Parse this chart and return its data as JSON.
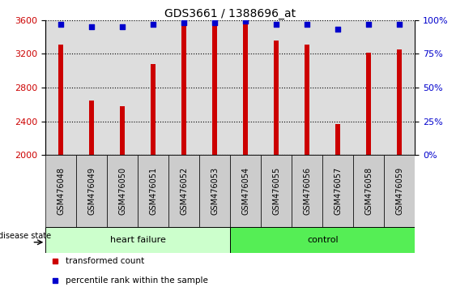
{
  "title": "GDS3661 / 1388696_at",
  "samples": [
    "GSM476048",
    "GSM476049",
    "GSM476050",
    "GSM476051",
    "GSM476052",
    "GSM476053",
    "GSM476054",
    "GSM476055",
    "GSM476056",
    "GSM476057",
    "GSM476058",
    "GSM476059"
  ],
  "transformed_count": [
    3305,
    2650,
    2580,
    3075,
    3530,
    3535,
    3590,
    3360,
    3305,
    2370,
    3210,
    3255
  ],
  "percentile_rank": [
    97,
    95,
    95,
    97,
    98,
    98,
    99,
    97,
    97,
    93,
    97,
    97
  ],
  "ymin": 2000,
  "ymax": 3600,
  "yticks": [
    2000,
    2400,
    2800,
    3200,
    3600
  ],
  "right_yticks": [
    0,
    25,
    50,
    75,
    100
  ],
  "bar_color": "#cc0000",
  "dot_color": "#0000cc",
  "groups": [
    {
      "label": "heart failure",
      "start": 0,
      "end": 6,
      "color": "#ccffcc"
    },
    {
      "label": "control",
      "start": 6,
      "end": 12,
      "color": "#55ee55"
    }
  ],
  "tick_bg_color": "#cccccc",
  "plot_bg_color": "#dddddd",
  "disease_state_label": "disease state",
  "legend_items": [
    {
      "label": "transformed count",
      "color": "#cc0000"
    },
    {
      "label": "percentile rank within the sample",
      "color": "#0000cc"
    }
  ],
  "title_fontsize": 10,
  "tick_label_fontsize": 7,
  "bar_width": 0.15
}
